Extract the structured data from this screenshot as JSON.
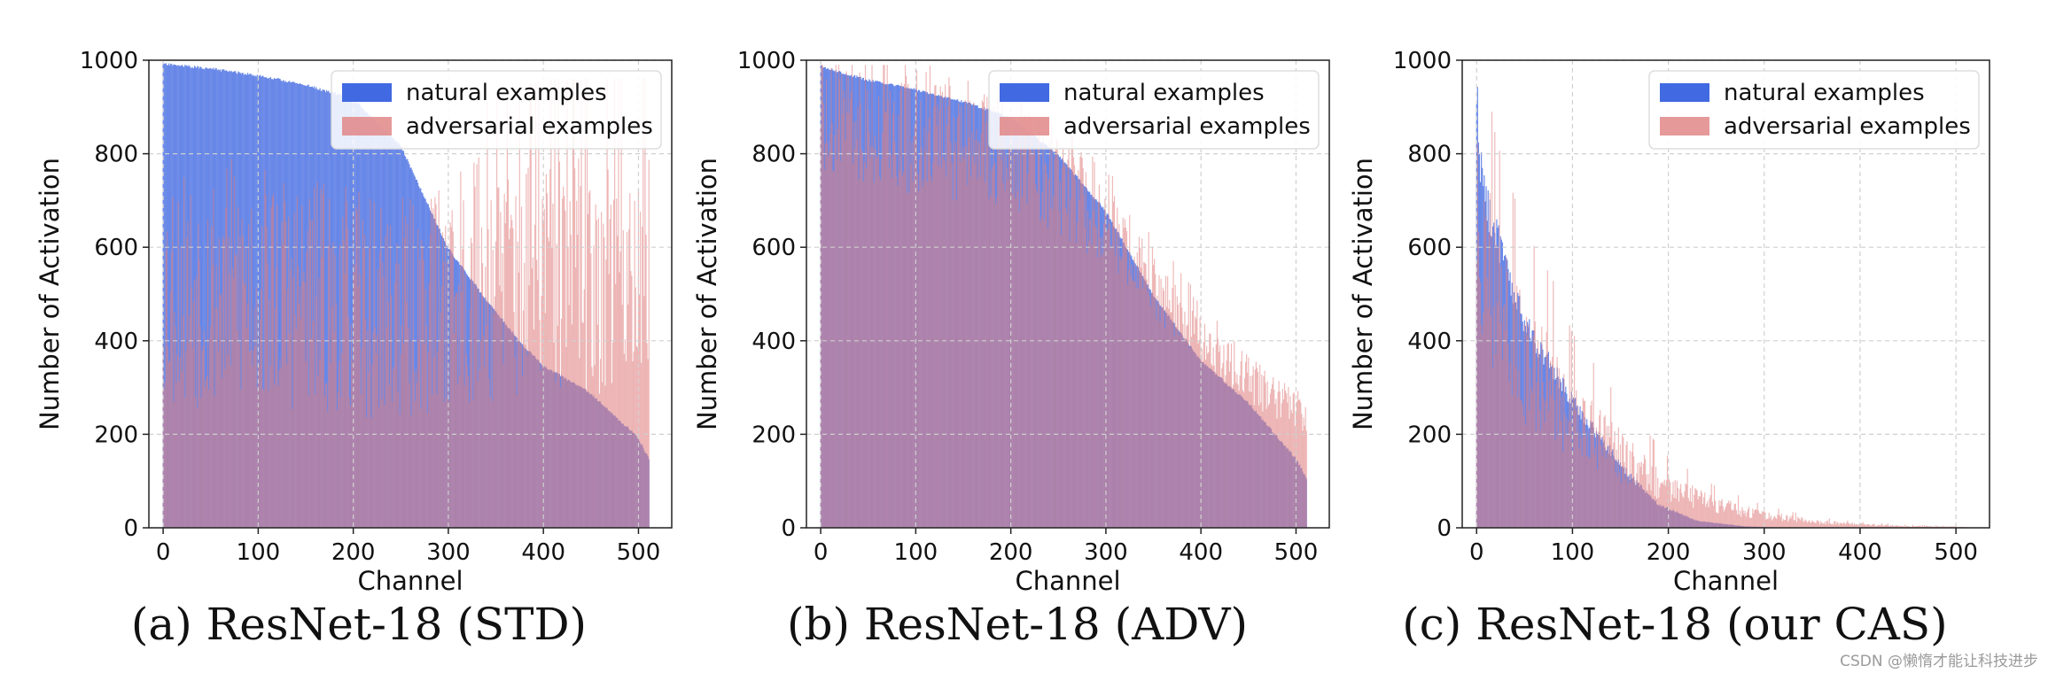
{
  "chart_data": [
    {
      "type": "bar",
      "caption": "(a) ResNet-18 (STD)",
      "xlabel": "Channel",
      "ylabel": "Number of Activation",
      "xlim": [
        -15,
        535
      ],
      "ylim": [
        0,
        1000
      ],
      "xticks": [
        0,
        100,
        200,
        300,
        400,
        500
      ],
      "yticks": [
        0,
        200,
        400,
        600,
        800,
        1000
      ],
      "grid": true,
      "legend_position": "top-right",
      "channels": 512,
      "series": [
        {
          "name": "natural examples",
          "color": "#4169e1",
          "sorted_profile": [
            [
              0,
              995
            ],
            [
              50,
              985
            ],
            [
              100,
              970
            ],
            [
              150,
              950
            ],
            [
              200,
              920
            ],
            [
              250,
              820
            ],
            [
              300,
              600
            ],
            [
              340,
              490
            ],
            [
              380,
              390
            ],
            [
              400,
              350
            ],
            [
              450,
              290
            ],
            [
              500,
              195
            ],
            [
              511,
              150
            ]
          ]
        },
        {
          "name": "adversarial examples",
          "color": "#e08080",
          "profile": [
            [
              0,
              720
            ],
            [
              100,
              720
            ],
            [
              200,
              660
            ],
            [
              260,
              640
            ],
            [
              300,
              700
            ],
            [
              340,
              760
            ],
            [
              400,
              800
            ],
            [
              511,
              800
            ]
          ]
        }
      ]
    },
    {
      "type": "bar",
      "caption": "(b) ResNet-18 (ADV)",
      "xlabel": "Channel",
      "ylabel": "Number of Activation",
      "xlim": [
        -15,
        535
      ],
      "ylim": [
        0,
        1000
      ],
      "xticks": [
        0,
        100,
        200,
        300,
        400,
        500
      ],
      "yticks": [
        0,
        200,
        400,
        600,
        800,
        1000
      ],
      "grid": true,
      "legend_position": "top-right",
      "channels": 512,
      "series": [
        {
          "name": "natural examples",
          "color": "#4169e1",
          "sorted_profile": [
            [
              0,
              990
            ],
            [
              50,
              960
            ],
            [
              100,
              940
            ],
            [
              150,
              915
            ],
            [
              200,
              880
            ],
            [
              250,
              800
            ],
            [
              300,
              680
            ],
            [
              350,
              500
            ],
            [
              400,
              360
            ],
            [
              450,
              270
            ],
            [
              500,
              150
            ],
            [
              511,
              110
            ]
          ]
        },
        {
          "name": "adversarial examples",
          "color": "#e08080",
          "profile": [
            [
              0,
              955
            ],
            [
              100,
              890
            ],
            [
              200,
              840
            ],
            [
              260,
              760
            ],
            [
              300,
              690
            ],
            [
              350,
              560
            ],
            [
              400,
              440
            ],
            [
              450,
              330
            ],
            [
              511,
              250
            ]
          ]
        }
      ]
    },
    {
      "type": "bar",
      "caption": "(c) ResNet-18 (our CAS)",
      "xlabel": "Channel",
      "ylabel": "Number of Activation",
      "xlim": [
        -15,
        535
      ],
      "ylim": [
        0,
        1000
      ],
      "xticks": [
        0,
        100,
        200,
        300,
        400,
        500
      ],
      "yticks": [
        0,
        200,
        400,
        600,
        800,
        1000
      ],
      "grid": true,
      "legend_position": "top-right",
      "channels": 512,
      "series": [
        {
          "name": "natural examples",
          "color": "#4169e1",
          "sorted_profile": [
            [
              0,
              930
            ],
            [
              5,
              760
            ],
            [
              10,
              700
            ],
            [
              20,
              630
            ],
            [
              30,
              560
            ],
            [
              40,
              490
            ],
            [
              50,
              440
            ],
            [
              70,
              370
            ],
            [
              100,
              270
            ],
            [
              130,
              190
            ],
            [
              160,
              110
            ],
            [
              190,
              50
            ],
            [
              230,
              15
            ],
            [
              280,
              3
            ],
            [
              330,
              0
            ],
            [
              511,
              0
            ]
          ]
        },
        {
          "name": "adversarial examples",
          "color": "#e08080",
          "profile": [
            [
              0,
              700
            ],
            [
              20,
              520
            ],
            [
              50,
              400
            ],
            [
              80,
              330
            ],
            [
              100,
              260
            ],
            [
              150,
              170
            ],
            [
              200,
              95
            ],
            [
              250,
              55
            ],
            [
              300,
              30
            ],
            [
              350,
              15
            ],
            [
              400,
              8
            ],
            [
              450,
              4
            ],
            [
              511,
              2
            ]
          ]
        }
      ]
    }
  ],
  "watermark": "CSDN @懒惰才能让科技进步"
}
